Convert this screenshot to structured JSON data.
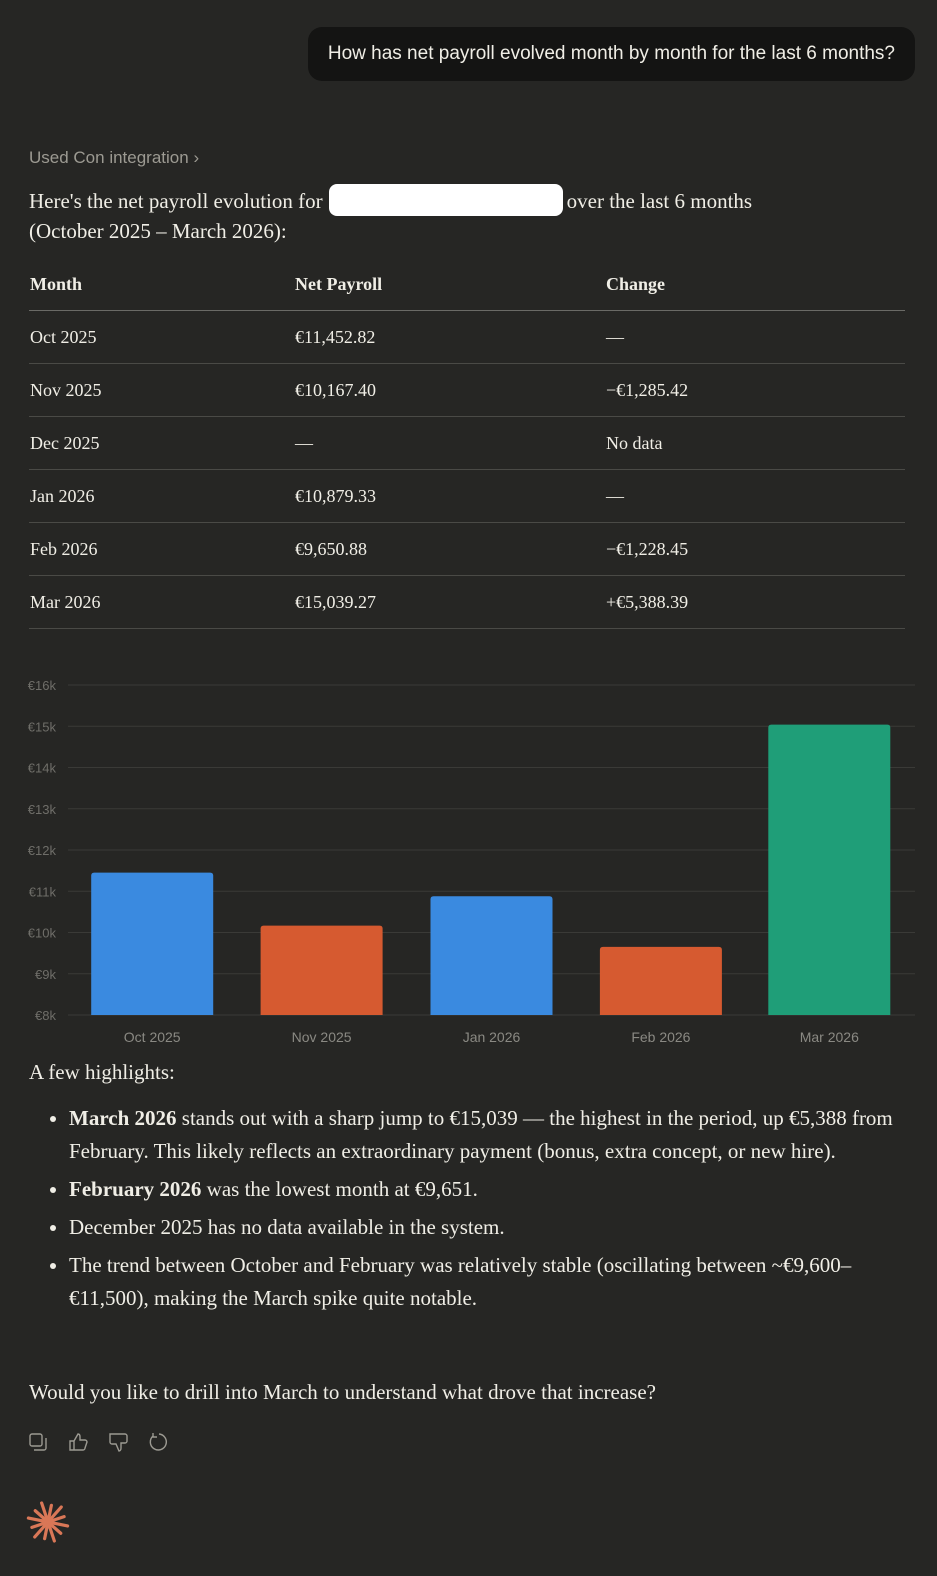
{
  "user_message": "How has net payroll evolved month by month for the last 6 months?",
  "tool_used": "Used Con integration",
  "intro": {
    "before": "Here's the net payroll evolution for",
    "after": "over the last 6 months (October 2025 – March 2026):"
  },
  "table": {
    "headers": [
      "Month",
      "Net Payroll",
      "Change"
    ],
    "rows": [
      [
        "Oct 2025",
        "€11,452.82",
        "—"
      ],
      [
        "Nov 2025",
        "€10,167.40",
        "−€1,285.42"
      ],
      [
        "Dec 2025",
        "—",
        "No data"
      ],
      [
        "Jan 2026",
        "€10,879.33",
        "—"
      ],
      [
        "Feb 2026",
        "€9,650.88",
        "−€1,228.45"
      ],
      [
        "Mar 2026",
        "€15,039.27",
        "+€5,388.39"
      ]
    ]
  },
  "chart_data": {
    "type": "bar",
    "categories": [
      "Oct 2025",
      "Nov 2025",
      "Jan 2026",
      "Feb 2026",
      "Mar 2026"
    ],
    "values": [
      11452.82,
      10167.4,
      10879.33,
      9650.88,
      15039.27
    ],
    "colors": [
      "#3a8ae0",
      "#d65a30",
      "#3a8ae0",
      "#d65a30",
      "#1f9e78"
    ],
    "ylim": [
      8000,
      16000
    ],
    "yticks": [
      "€8k",
      "€9k",
      "€10k",
      "€11k",
      "€12k",
      "€13k",
      "€14k",
      "€15k",
      "€16k"
    ],
    "grid": true
  },
  "highlights_title": "A few highlights:",
  "highlights": [
    {
      "bold": "March 2026",
      "text": " stands out with a sharp jump to €15,039 — the highest in the period, up €5,388 from February. This likely reflects an extraordinary payment (bonus, extra concept, or new hire)."
    },
    {
      "bold": "February 2026",
      "text": " was the lowest month at €9,651."
    },
    {
      "bold": "",
      "text": "December 2025 has no data available in the system."
    },
    {
      "bold": "",
      "text": "The trend between October and February was relatively stable (oscillating between ~€9,600–€11,500), making the March spike quite notable."
    }
  ],
  "closing_question": "Would you like to drill into March to understand what drove that increase?",
  "actions": [
    "copy-icon",
    "thumbs-up-icon",
    "thumbs-down-icon",
    "retry-icon"
  ],
  "accent": "#d97757"
}
